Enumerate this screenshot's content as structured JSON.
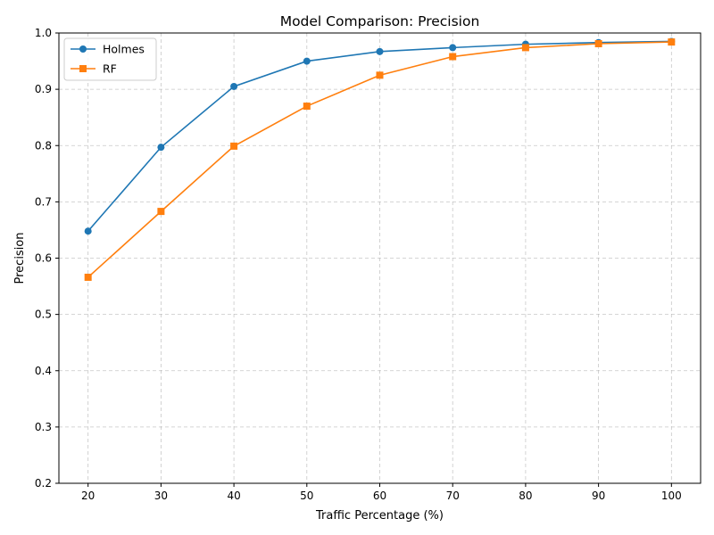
{
  "chart_data": {
    "type": "line",
    "title": "Model Comparison: Precision",
    "xlabel": "Traffic Percentage (%)",
    "ylabel": "Precision",
    "x": [
      20,
      30,
      40,
      50,
      60,
      70,
      80,
      90,
      100
    ],
    "xticks": [
      "20",
      "30",
      "40",
      "50",
      "60",
      "70",
      "80",
      "90",
      "100"
    ],
    "yticks": [
      "0.2",
      "0.3",
      "0.4",
      "0.5",
      "0.6",
      "0.7",
      "0.8",
      "0.9",
      "1.0"
    ],
    "xlim": [
      16,
      104
    ],
    "ylim": [
      0.2,
      1.0
    ],
    "grid": true,
    "legend_position": "top-left",
    "series": [
      {
        "name": "Holmes",
        "color": "#1f77b4",
        "marker": "circle",
        "values": [
          0.648,
          0.797,
          0.905,
          0.95,
          0.967,
          0.974,
          0.98,
          0.983,
          0.985
        ]
      },
      {
        "name": "RF",
        "color": "#ff7f0e",
        "marker": "square",
        "values": [
          0.566,
          0.683,
          0.799,
          0.87,
          0.925,
          0.958,
          0.974,
          0.981,
          0.984
        ]
      }
    ]
  }
}
